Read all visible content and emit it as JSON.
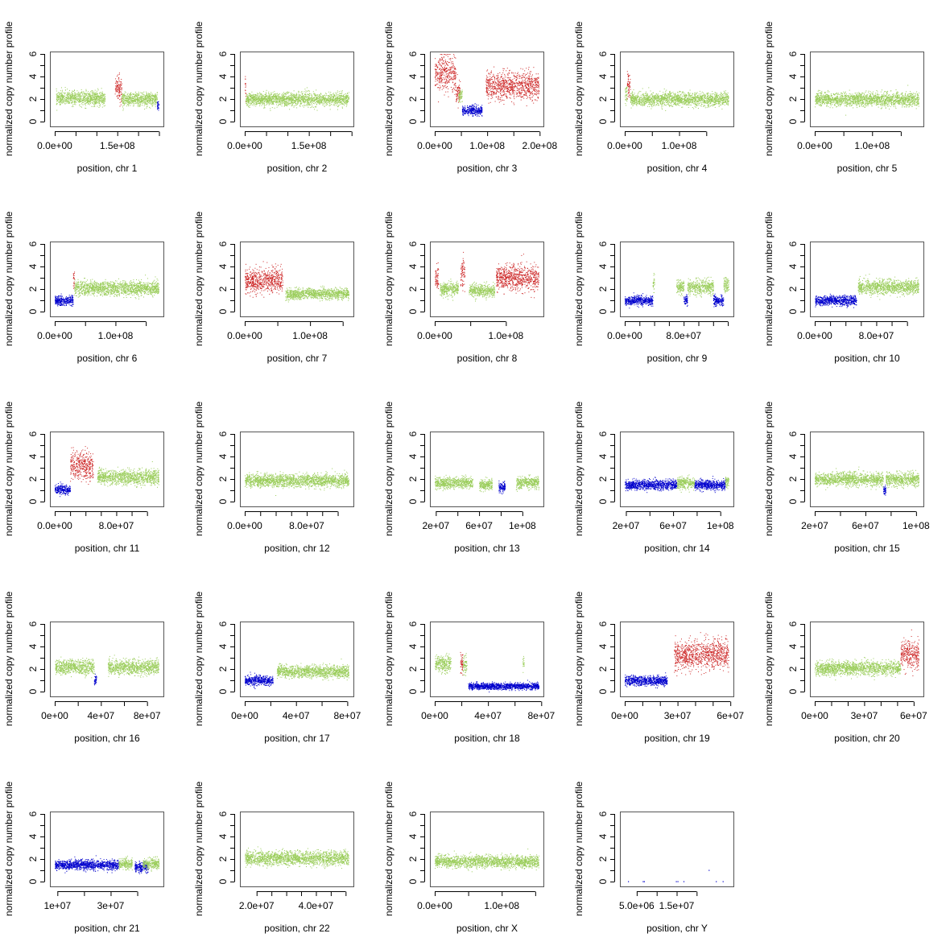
{
  "chart_data": {
    "type": "scatter",
    "ylabel": "normalized copy number profile",
    "ylim": [
      0,
      6
    ],
    "yticks": [
      "0",
      "2",
      "4",
      "6"
    ],
    "colors": {
      "normal": "#9acd5a",
      "gain": "#cd2626",
      "loss": "#0000cd"
    },
    "panels": [
      {
        "xlabel": "position, chr 1",
        "xlim": [
          0,
          249000000
        ],
        "xticks": [
          0,
          50000000,
          100000000,
          150000000,
          200000000,
          250000000
        ],
        "xtick_labels": [
          "0.0e+00",
          "1.5e+08"
        ],
        "xtick_label_values": [
          0,
          150000000
        ],
        "segments": [
          [
            3000000,
            120000000,
            2.1,
            "normal"
          ],
          [
            144000000,
            160000000,
            3.0,
            "gain"
          ],
          [
            160000000,
            245000000,
            2.0,
            "normal"
          ],
          [
            245000000,
            249000000,
            1.5,
            "loss"
          ]
        ]
      },
      {
        "xlabel": "position, chr 2",
        "xlim": [
          0,
          243000000
        ],
        "xticks": [
          0,
          50000000,
          100000000,
          150000000,
          200000000,
          250000000
        ],
        "xtick_labels": [
          "0.0e+00",
          "1.5e+08"
        ],
        "xtick_label_values": [
          0,
          150000000
        ],
        "segments": [
          [
            0,
            2000000,
            3.2,
            "gain"
          ],
          [
            2000000,
            243000000,
            2.0,
            "normal"
          ]
        ]
      },
      {
        "xlabel": "position, chr 3",
        "xlim": [
          0,
          198000000
        ],
        "xticks": [
          0,
          50000000,
          100000000,
          150000000,
          200000000
        ],
        "xtick_labels": [
          "0.0e+00",
          "1.0e+08",
          "2.0e+08"
        ],
        "xtick_label_values": [
          0,
          100000000,
          200000000
        ],
        "segments": [
          [
            0,
            40000000,
            4.3,
            "gain"
          ],
          [
            40000000,
            48000000,
            2.6,
            "gain"
          ],
          [
            45000000,
            52000000,
            2.3,
            "normal"
          ],
          [
            52000000,
            90000000,
            1.0,
            "loss"
          ],
          [
            97000000,
            198000000,
            3.2,
            "gain"
          ]
        ]
      },
      {
        "xlabel": "position, chr 4",
        "xlim": [
          0,
          191000000
        ],
        "xticks": [
          0,
          50000000,
          100000000,
          150000000
        ],
        "xtick_labels": [
          "0.0e+00",
          "1.0e+08"
        ],
        "xtick_label_values": [
          0,
          100000000
        ],
        "segments": [
          [
            0,
            4000000,
            2.4,
            "normal"
          ],
          [
            4000000,
            10000000,
            3.3,
            "gain"
          ],
          [
            10000000,
            191000000,
            2.0,
            "normal"
          ]
        ]
      },
      {
        "xlabel": "position, chr 5",
        "xlim": [
          0,
          181000000
        ],
        "xticks": [
          0,
          50000000,
          100000000,
          150000000
        ],
        "xtick_labels": [
          "0.0e+00",
          "1.0e+08"
        ],
        "xtick_label_values": [
          0,
          100000000
        ],
        "segments": [
          [
            0,
            181000000,
            2.0,
            "normal"
          ]
        ]
      },
      {
        "xlabel": "position, chr 6",
        "xlim": [
          0,
          171000000
        ],
        "xticks": [
          0,
          50000000,
          100000000,
          150000000
        ],
        "xtick_labels": [
          "0.0e+00",
          "1.0e+08"
        ],
        "xtick_label_values": [
          0,
          100000000
        ],
        "segments": [
          [
            0,
            30000000,
            1.0,
            "loss"
          ],
          [
            30000000,
            32000000,
            3.0,
            "gain"
          ],
          [
            32000000,
            171000000,
            2.1,
            "normal"
          ]
        ]
      },
      {
        "xlabel": "position, chr 7",
        "xlim": [
          0,
          159000000
        ],
        "xticks": [
          0,
          50000000,
          100000000,
          150000000
        ],
        "xtick_labels": [
          "0.0e+00",
          "1.0e+08"
        ],
        "xtick_label_values": [
          0,
          100000000
        ],
        "segments": [
          [
            0,
            58000000,
            2.8,
            "gain"
          ],
          [
            62000000,
            159000000,
            1.6,
            "normal"
          ]
        ]
      },
      {
        "xlabel": "position, chr 8",
        "xlim": [
          0,
          146000000
        ],
        "xticks": [
          0,
          50000000,
          100000000
        ],
        "xtick_labels": [
          "0.0e+00",
          "1.0e+08"
        ],
        "xtick_label_values": [
          0,
          100000000
        ],
        "segments": [
          [
            0,
            5000000,
            3.0,
            "gain"
          ],
          [
            7000000,
            33000000,
            2.0,
            "normal"
          ],
          [
            36000000,
            42000000,
            3.6,
            "gain"
          ],
          [
            48000000,
            84000000,
            1.9,
            "normal"
          ],
          [
            86000000,
            146000000,
            3.0,
            "gain"
          ]
        ]
      },
      {
        "xlabel": "position, chr 9",
        "xlim": [
          0,
          141000000
        ],
        "xticks": [
          0,
          20000000,
          40000000,
          60000000,
          80000000,
          100000000,
          120000000,
          140000000
        ],
        "xtick_labels": [
          "0.0e+00",
          "8.0e+07"
        ],
        "xtick_label_values": [
          0,
          80000000
        ],
        "segments": [
          [
            0,
            38000000,
            1.0,
            "loss"
          ],
          [
            38000000,
            40000000,
            2.5,
            "normal"
          ],
          [
            70000000,
            80000000,
            2.2,
            "normal"
          ],
          [
            80000000,
            85000000,
            1.0,
            "loss"
          ],
          [
            85000000,
            120000000,
            2.2,
            "normal"
          ],
          [
            120000000,
            134000000,
            1.0,
            "loss"
          ],
          [
            134000000,
            141000000,
            2.4,
            "normal"
          ]
        ]
      },
      {
        "xlabel": "position, chr 10",
        "xlim": [
          0,
          135000000
        ],
        "xticks": [
          0,
          20000000,
          40000000,
          60000000,
          80000000,
          100000000,
          120000000
        ],
        "xtick_labels": [
          "0.0e+00",
          "8.0e+07"
        ],
        "xtick_label_values": [
          0,
          80000000
        ],
        "segments": [
          [
            0,
            54000000,
            1.0,
            "loss"
          ],
          [
            56000000,
            135000000,
            2.2,
            "normal"
          ]
        ]
      },
      {
        "xlabel": "position, chr 11",
        "xlim": [
          0,
          135000000
        ],
        "xticks": [
          0,
          20000000,
          40000000,
          60000000,
          80000000,
          100000000,
          120000000
        ],
        "xtick_labels": [
          "0.0e+00",
          "8.0e+07"
        ],
        "xtick_label_values": [
          0,
          80000000
        ],
        "segments": [
          [
            0,
            20000000,
            1.1,
            "loss"
          ],
          [
            20000000,
            50000000,
            3.2,
            "gain"
          ],
          [
            55000000,
            135000000,
            2.2,
            "normal"
          ]
        ]
      },
      {
        "xlabel": "position, chr 12",
        "xlim": [
          0,
          134000000
        ],
        "xticks": [
          0,
          20000000,
          40000000,
          60000000,
          80000000,
          100000000,
          120000000
        ],
        "xtick_labels": [
          "0.0e+00",
          "8.0e+07"
        ],
        "xtick_label_values": [
          0,
          80000000
        ],
        "segments": [
          [
            0,
            134000000,
            1.9,
            "normal"
          ]
        ]
      },
      {
        "xlabel": "position, chr 13",
        "xlim": [
          19000000,
          115000000
        ],
        "xticks": [
          20000000,
          40000000,
          60000000,
          80000000,
          100000000
        ],
        "xtick_labels": [
          "2e+07",
          "6e+07",
          "1e+08"
        ],
        "xtick_label_values": [
          20000000,
          60000000,
          100000000
        ],
        "segments": [
          [
            19000000,
            54000000,
            1.7,
            "normal"
          ],
          [
            60000000,
            72000000,
            1.5,
            "normal"
          ],
          [
            78000000,
            84000000,
            1.3,
            "loss"
          ],
          [
            94000000,
            115000000,
            1.7,
            "normal"
          ]
        ]
      },
      {
        "xlabel": "position, chr 14",
        "xlim": [
          19000000,
          107000000
        ],
        "xticks": [
          20000000,
          40000000,
          60000000,
          80000000,
          100000000
        ],
        "xtick_labels": [
          "2e+07",
          "6e+07",
          "1e+08"
        ],
        "xtick_label_values": [
          20000000,
          60000000,
          100000000
        ],
        "segments": [
          [
            19000000,
            63000000,
            1.5,
            "loss"
          ],
          [
            63000000,
            78000000,
            1.7,
            "normal"
          ],
          [
            78000000,
            104000000,
            1.5,
            "loss"
          ],
          [
            104000000,
            107000000,
            1.8,
            "normal"
          ]
        ]
      },
      {
        "xlabel": "position, chr 15",
        "xlim": [
          20000000,
          102000000
        ],
        "xticks": [
          20000000,
          40000000,
          60000000,
          80000000,
          100000000
        ],
        "xtick_labels": [
          "2e+07",
          "6e+07",
          "1e+08"
        ],
        "xtick_label_values": [
          20000000,
          60000000,
          100000000
        ],
        "segments": [
          [
            20000000,
            74000000,
            2.0,
            "normal"
          ],
          [
            74000000,
            76000000,
            1.0,
            "loss"
          ],
          [
            76000000,
            102000000,
            2.0,
            "normal"
          ]
        ]
      },
      {
        "xlabel": "position, chr 16",
        "xlim": [
          0,
          90000000
        ],
        "xticks": [
          0,
          20000000,
          40000000,
          60000000,
          80000000
        ],
        "xtick_labels": [
          "0e+00",
          "4e+07",
          "8e+07"
        ],
        "xtick_label_values": [
          0,
          40000000,
          80000000
        ],
        "segments": [
          [
            0,
            34000000,
            2.2,
            "normal"
          ],
          [
            34000000,
            36000000,
            1.0,
            "loss"
          ],
          [
            46000000,
            90000000,
            2.2,
            "normal"
          ]
        ]
      },
      {
        "xlabel": "position, chr 17",
        "xlim": [
          0,
          81000000
        ],
        "xticks": [
          0,
          20000000,
          40000000,
          60000000,
          80000000
        ],
        "xtick_labels": [
          "0e+00",
          "4e+07",
          "8e+07"
        ],
        "xtick_label_values": [
          0,
          40000000,
          80000000
        ],
        "segments": [
          [
            0,
            22000000,
            1.0,
            "loss"
          ],
          [
            25000000,
            81000000,
            1.8,
            "normal"
          ]
        ]
      },
      {
        "xlabel": "position, chr 18",
        "xlim": [
          0,
          78000000
        ],
        "xticks": [
          0,
          20000000,
          40000000,
          60000000,
          80000000
        ],
        "xtick_labels": [
          "0e+00",
          "4e+07",
          "8e+07"
        ],
        "xtick_label_values": [
          0,
          40000000,
          80000000
        ],
        "segments": [
          [
            0,
            12000000,
            2.5,
            "normal"
          ],
          [
            19000000,
            21000000,
            2.6,
            "gain"
          ],
          [
            21000000,
            24000000,
            2.4,
            "normal"
          ],
          [
            25000000,
            78000000,
            0.5,
            "loss"
          ],
          [
            66000000,
            67000000,
            2.5,
            "normal"
          ]
        ]
      },
      {
        "xlabel": "position, chr 19",
        "xlim": [
          0,
          59000000
        ],
        "xticks": [
          0,
          10000000,
          20000000,
          30000000,
          40000000,
          50000000,
          60000000
        ],
        "xtick_labels": [
          "0e+00",
          "3e+07",
          "6e+07"
        ],
        "xtick_label_values": [
          0,
          30000000,
          60000000
        ],
        "segments": [
          [
            0,
            24000000,
            1.0,
            "loss"
          ],
          [
            28000000,
            59000000,
            3.3,
            "gain"
          ]
        ]
      },
      {
        "xlabel": "position, chr 20",
        "xlim": [
          0,
          63000000
        ],
        "xticks": [
          0,
          10000000,
          20000000,
          30000000,
          40000000,
          50000000,
          60000000
        ],
        "xtick_labels": [
          "0e+00",
          "3e+07",
          "6e+07"
        ],
        "xtick_label_values": [
          0,
          30000000,
          60000000
        ],
        "segments": [
          [
            0,
            52000000,
            2.1,
            "normal"
          ],
          [
            52000000,
            63000000,
            3.3,
            "gain"
          ]
        ]
      },
      {
        "xlabel": "position, chr 21",
        "xlim": [
          9000000,
          48000000
        ],
        "xticks": [
          10000000,
          20000000,
          30000000,
          40000000
        ],
        "xtick_labels": [
          "1e+07",
          "3e+07"
        ],
        "xtick_label_values": [
          10000000,
          30000000
        ],
        "segments": [
          [
            9000000,
            33000000,
            1.5,
            "loss"
          ],
          [
            33000000,
            38000000,
            1.6,
            "normal"
          ],
          [
            39000000,
            44000000,
            1.3,
            "loss"
          ],
          [
            42000000,
            48000000,
            1.6,
            "normal"
          ]
        ]
      },
      {
        "xlabel": "position, chr 22",
        "xlim": [
          16000000,
          51000000
        ],
        "xticks": [
          20000000,
          25000000,
          30000000,
          35000000,
          40000000,
          45000000,
          50000000
        ],
        "xtick_labels": [
          "2.0e+07",
          "4.0e+07"
        ],
        "xtick_label_values": [
          20000000,
          40000000
        ],
        "segments": [
          [
            16000000,
            51000000,
            2.1,
            "normal"
          ]
        ]
      },
      {
        "xlabel": "position, chr X",
        "xlim": [
          0,
          155000000
        ],
        "xticks": [
          0,
          50000000,
          100000000,
          150000000
        ],
        "xtick_labels": [
          "0.0e+00",
          "1.0e+08"
        ],
        "xtick_label_values": [
          0,
          100000000
        ],
        "segments": [
          [
            0,
            155000000,
            1.8,
            "normal"
          ]
        ]
      },
      {
        "xlabel": "position, chr Y",
        "xlim": [
          2000000,
          28000000
        ],
        "xticks": [
          5000000,
          10000000,
          15000000,
          20000000
        ],
        "xtick_labels": [
          "5.0e+06",
          "1.5e+07"
        ],
        "xtick_label_values": [
          5000000,
          15000000
        ],
        "segments": [],
        "points": [
          [
            2800000,
            0.0,
            "loss"
          ],
          [
            6500000,
            0.0,
            "loss"
          ],
          [
            6800000,
            0.0,
            "loss"
          ],
          [
            14800000,
            0.0,
            "loss"
          ],
          [
            15200000,
            0.0,
            "loss"
          ],
          [
            16700000,
            0.0,
            "loss"
          ],
          [
            23000000,
            1.0,
            "loss"
          ],
          [
            24800000,
            0.0,
            "loss"
          ],
          [
            26500000,
            0.0,
            "loss"
          ]
        ]
      }
    ]
  }
}
